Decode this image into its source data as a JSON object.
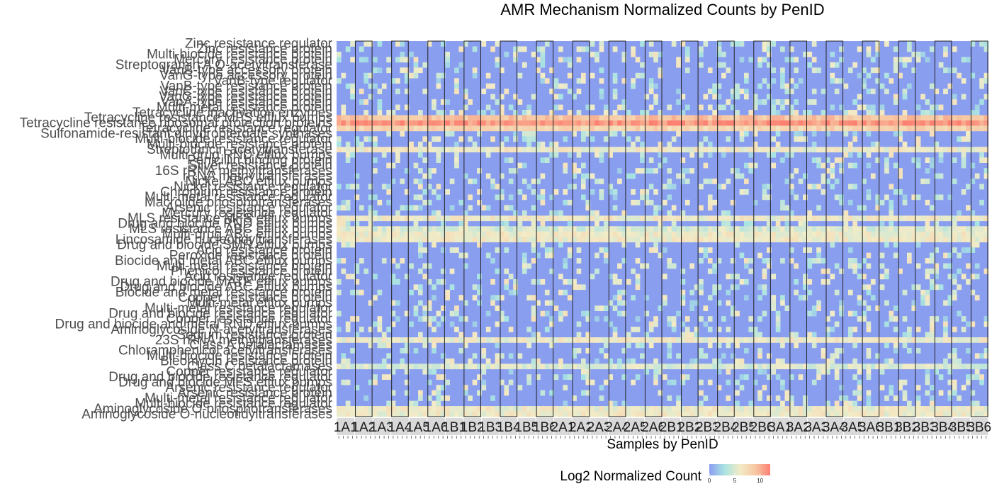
{
  "chart_data": {
    "type": "heatmap",
    "title": "AMR Mechanism Normalized Counts by PenID",
    "xlabel": "Samples by PenID",
    "ylabel": "",
    "x_panels": [
      "1A1",
      "1A2",
      "1A3",
      "1A4",
      "1A5",
      "1A6",
      "1B1",
      "1B2",
      "1B3",
      "1B4",
      "1B5",
      "1B6",
      "2A1",
      "2A2",
      "2A3",
      "2A4",
      "2A5",
      "2A6",
      "2B1",
      "2B2",
      "2B3",
      "2B4",
      "2B5",
      "2B6",
      "3A1",
      "3A2",
      "3A3",
      "3A4",
      "3A5",
      "3A6",
      "3B1",
      "3B2",
      "3B3",
      "3B4",
      "3B5",
      "3B6"
    ],
    "y_categories": [
      "Zinc resistance regulator",
      "Zinc resistance protein",
      "Multi-biocide resistance protein",
      "Mercury resistance protein",
      "Streptogramin A O-acetyltransferase",
      "VanB-type accessory protein",
      "VanG-type accessory protein",
      "VanB-type regulator",
      "VanB-type resistance protein",
      "VanC-type resistance protein",
      "VanG-type resistance protein",
      "VanA-type resistance protein",
      "Multi-metal resistance protein",
      "Tetracycline inactivation enzymes",
      "Tetracycline resistance MFS efflux pumps",
      "Tetracycline resistance ribosomal protection proteins",
      "Tetracycline resistance regulator",
      "Sulfonamide-resistant dihydropteroate synthases",
      "Multi-biocide resistance regulator",
      "Multi-biocide resistance protein",
      "Streptothricin acetyltransferase",
      "Multi-drug RND efflux pumps",
      "Penicillin binding protein",
      "Silver resistance protein",
      "16S rRNA methyltransferases",
      "rRNA methyltransferases",
      "Nickel ABC efflux pumps",
      "Nickel resistance regulator",
      "Chromium resistance protein",
      "Multi-metal resistance regulator",
      "Macrolide phosphotransferases",
      "Arsenic resistance regulator",
      "Mercury resistance regulator",
      "MLS resistance MFS efflux pumps",
      "Drug and biocide RND efflux pumps",
      "MLS resistance ABC efflux pumps",
      "Multi-drug ABC efflux pumps",
      "Lincosamide nucleotidyltransferases",
      "Drug and biocide SMR efflux pumps",
      "Acid resistance protein",
      "Peroxide resistance protein",
      "Biocide and metal ABC efflux pumps",
      "Multi-metal resistance protein",
      "Phenicol resistance protein",
      "Acid resistance regulator",
      "Drug and biocide MATE efflux pumps",
      "Drug and biocide ABC efflux pumps",
      "Biocide and metal resistance protein",
      "Copper resistance protein",
      "Multi-metal efflux pumps",
      "Multi-metal resistance regulator",
      "Drug and biocide resistance regulator",
      "Copper resistance regulator",
      "Drug and biocide and metal RND efflux pumps",
      "Aminoglycoside N-acetyltransferases",
      "Sodium resistance protein",
      "23S rRNA methyltransferases",
      "Class A betalactamases",
      "Chloramphenicol acetyltransferases",
      "Multi-biocide resistance protein",
      "Bleomycin resistance protein",
      "Class C betalactamases",
      "Copper resistance regulator",
      "Drug and biocide resistance regulator",
      "Drug and biocide MFS efflux pumps",
      "Arsenic resistance regulator",
      "Arsenic resistance protein",
      "Multi-metal resistance regulator",
      "Multi-biocide resistance regulator",
      "Aminoglycoside O-phosphotransferases",
      "Aminoglycoside O-nucleotidyltransferases"
    ],
    "colorbar": {
      "title": "Log2 Normalized Count",
      "ticks": [
        0,
        5,
        10
      ],
      "range": [
        0,
        12
      ],
      "colors": [
        "#8a9ef0",
        "#a9e3e3",
        "#f2ecc7",
        "#f7c9a4",
        "#fb8072"
      ]
    },
    "high_rows": [
      {
        "row": 14,
        "level": 9
      },
      {
        "row": 15,
        "level": 11
      },
      {
        "row": 16,
        "level": 8
      },
      {
        "row": 20,
        "level": 6
      },
      {
        "row": 33,
        "level": 6
      },
      {
        "row": 35,
        "level": 5
      },
      {
        "row": 36,
        "level": 6
      },
      {
        "row": 37,
        "level": 6
      },
      {
        "row": 56,
        "level": 6
      },
      {
        "row": 61,
        "level": 5
      },
      {
        "row": 69,
        "level": 6
      },
      {
        "row": 70,
        "level": 6
      }
    ],
    "base_level": 0,
    "sparse_level_range": [
      2,
      7
    ],
    "grid": false,
    "legend_position": "bottom"
  }
}
